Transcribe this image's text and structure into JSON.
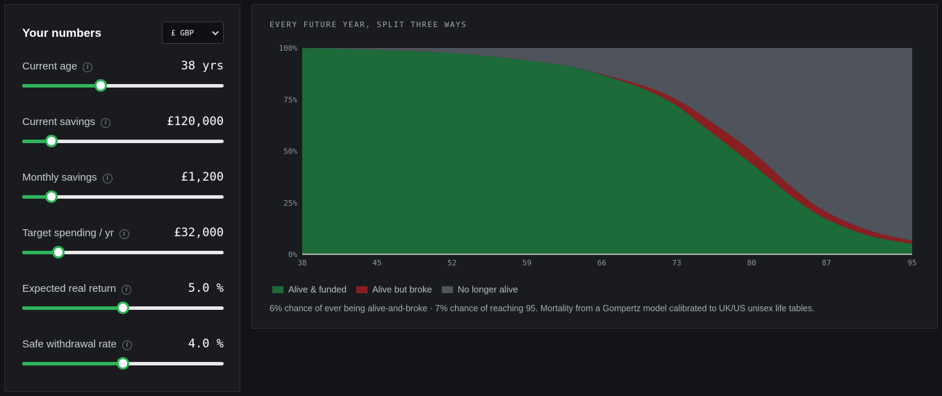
{
  "sidebar": {
    "title": "Your numbers",
    "currency": "£ GBP",
    "controls": [
      {
        "label": "Current age",
        "value": "38 yrs",
        "fraction": 0.39
      },
      {
        "label": "Current savings",
        "value": "£120,000",
        "fraction": 0.145
      },
      {
        "label": "Monthly savings",
        "value": "£1,200",
        "fraction": 0.145
      },
      {
        "label": "Target spending / yr",
        "value": "£32,000",
        "fraction": 0.18
      },
      {
        "label": "Expected real return",
        "value": "5.0 %",
        "fraction": 0.5
      },
      {
        "label": "Safe withdrawal rate",
        "value": "4.0 %",
        "fraction": 0.5
      }
    ]
  },
  "chart_panel": {
    "title": "EVERY FUTURE YEAR, SPLIT THREE WAYS",
    "footnote": "6% chance of ever being alive-and-broke · 7% chance of reaching 95. Mortality from a Gompertz model calibrated to UK/US unisex life tables."
  },
  "colors": {
    "funded": "#1c6b38",
    "broke": "#8a1f22",
    "dead": "#4f535b",
    "accent": "#2fb55b"
  },
  "chart_data": {
    "type": "area",
    "stacked": true,
    "title": "EVERY FUTURE YEAR, SPLIT THREE WAYS",
    "x_ticks": [
      "38",
      "45",
      "52",
      "59",
      "66",
      "73",
      "80",
      "87",
      "95"
    ],
    "y_ticks": [
      "0%",
      "25%",
      "50%",
      "75%",
      "100%"
    ],
    "xlim": [
      38,
      95
    ],
    "ylim": [
      0,
      100
    ],
    "x": [
      38,
      45,
      52,
      59,
      63,
      66,
      70,
      73,
      76,
      80,
      84,
      87,
      91,
      95
    ],
    "series": [
      {
        "name": "Alive & funded",
        "values": [
          100,
          99,
          97.5,
          94,
          91,
          87,
          80,
          72,
          60,
          44,
          27,
          17,
          9,
          5
        ]
      },
      {
        "name": "Alive but broke",
        "values": [
          0,
          0,
          0,
          0,
          0,
          0.3,
          1.5,
          3,
          5,
          6,
          4.5,
          3.5,
          2.5,
          1.5
        ]
      },
      {
        "name": "No longer alive",
        "values": [
          0,
          1,
          2.5,
          6,
          9,
          12.7,
          18.5,
          25,
          35,
          50,
          68.5,
          79.5,
          88.5,
          93.5
        ]
      }
    ],
    "legend": [
      "Alive & funded",
      "Alive but broke",
      "No longer alive"
    ],
    "legend_position": "bottom-left"
  }
}
